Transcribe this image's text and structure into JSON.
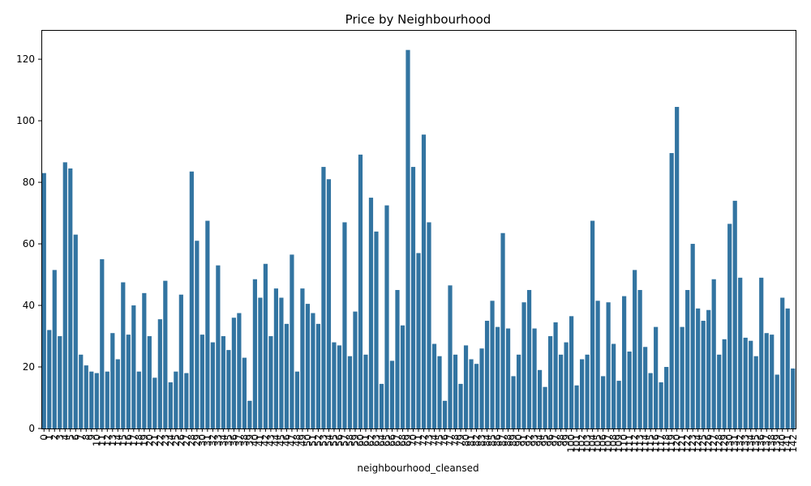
{
  "chart_data": {
    "type": "bar",
    "title": "Price by Neighbourhood",
    "xlabel": "neighbourhood_cleansed",
    "ylabel": "",
    "ylim": [
      0,
      129.5
    ],
    "yticks": [
      0,
      20,
      40,
      60,
      80,
      100,
      120
    ],
    "bar_color": "#3274a1",
    "grid": false,
    "categories": [
      "0",
      "1",
      "2",
      "3",
      "4",
      "5",
      "6",
      "7",
      "8",
      "9",
      "10",
      "11",
      "12",
      "13",
      "14",
      "15",
      "16",
      "17",
      "18",
      "19",
      "20",
      "21",
      "22",
      "23",
      "24",
      "25",
      "26",
      "27",
      "28",
      "29",
      "30",
      "31",
      "32",
      "33",
      "34",
      "35",
      "36",
      "37",
      "38",
      "39",
      "40",
      "41",
      "42",
      "43",
      "44",
      "45",
      "46",
      "47",
      "48",
      "49",
      "50",
      "51",
      "52",
      "53",
      "54",
      "55",
      "56",
      "57",
      "58",
      "59",
      "60",
      "61",
      "62",
      "63",
      "64",
      "65",
      "66",
      "67",
      "68",
      "69",
      "70",
      "71",
      "72",
      "73",
      "74",
      "75",
      "76",
      "77",
      "78",
      "79",
      "80",
      "81",
      "82",
      "83",
      "84",
      "85",
      "86",
      "87",
      "88",
      "89",
      "90",
      "91",
      "92",
      "93",
      "94",
      "95",
      "96",
      "97",
      "98",
      "99",
      "100",
      "101",
      "102",
      "103",
      "104",
      "105",
      "106",
      "107",
      "108",
      "109",
      "110",
      "111",
      "112",
      "113",
      "114",
      "115",
      "116",
      "117",
      "118",
      "119",
      "120",
      "121",
      "122",
      "123",
      "124",
      "125",
      "126",
      "127",
      "128",
      "129",
      "130",
      "131",
      "132",
      "133",
      "134",
      "135",
      "136",
      "137",
      "138",
      "139",
      "140",
      "141",
      "142"
    ],
    "values": [
      83,
      32,
      51.5,
      30,
      86.5,
      84.5,
      63,
      24,
      20.5,
      18.5,
      18,
      55,
      18.5,
      31,
      22.5,
      47.5,
      30.5,
      40,
      18.5,
      44,
      30,
      16.5,
      35.5,
      48,
      15,
      18.5,
      43.5,
      18,
      83.5,
      61,
      30.5,
      67.5,
      28,
      53,
      30,
      25.5,
      36,
      37.5,
      23,
      9,
      48.5,
      42.5,
      53.5,
      30,
      45.5,
      42.5,
      34,
      56.5,
      18.5,
      45.5,
      40.5,
      37.5,
      34,
      85,
      81,
      28,
      27,
      67,
      23.5,
      38,
      89,
      24,
      75,
      64,
      14.5,
      72.5,
      22,
      45,
      33.5,
      123,
      85,
      57,
      95.5,
      67,
      27.5,
      23.5,
      9,
      46.5,
      24,
      14.5,
      27,
      22.5,
      21,
      26,
      35,
      41.5,
      33,
      63.5,
      32.5,
      17,
      24,
      41,
      45,
      32.5,
      19,
      13.5,
      30,
      34.5,
      24,
      28,
      36.5,
      14,
      22.5,
      24,
      67.5,
      41.5,
      17,
      41,
      27.5,
      15.5,
      43,
      25,
      51.5,
      45,
      26.5,
      18,
      33,
      15,
      20,
      89.5,
      104.5,
      33,
      45,
      60,
      39,
      35,
      38.5,
      48.5,
      24,
      29,
      66.5,
      74,
      49,
      29.5,
      28.5,
      23.5,
      49,
      31,
      30.5,
      17.5,
      42.5,
      39,
      19.5
    ]
  }
}
